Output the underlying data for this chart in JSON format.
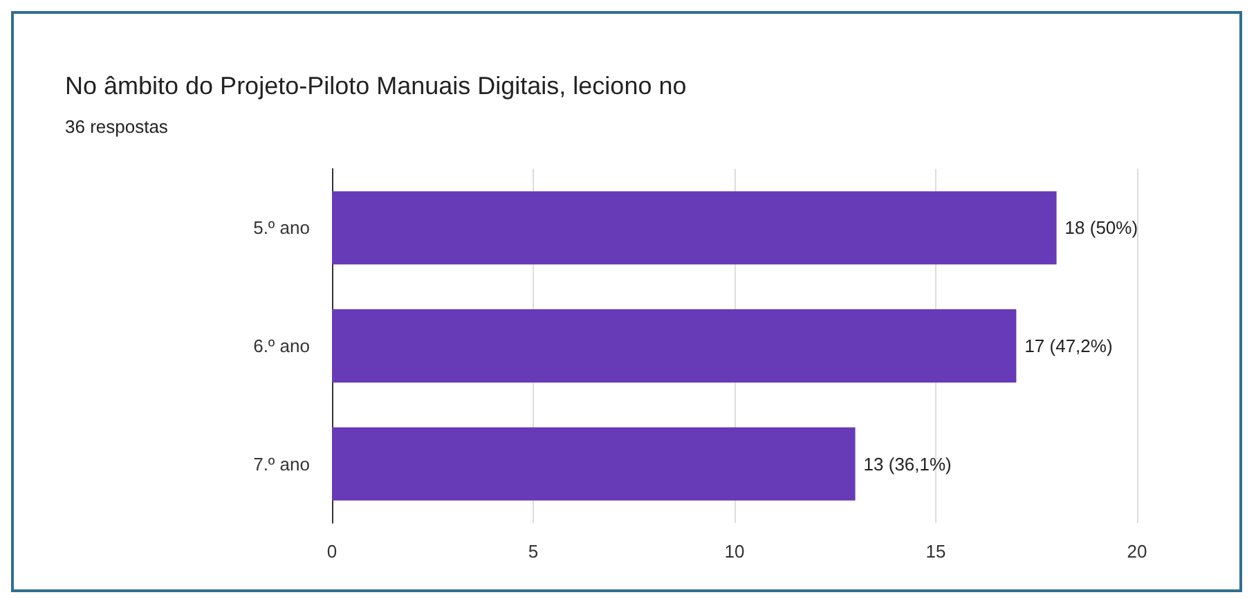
{
  "chart_data": {
    "type": "bar",
    "orientation": "horizontal",
    "title": "No âmbito do Projeto-Piloto Manuais Digitais, leciono no",
    "subtitle": "36 respostas",
    "categories": [
      "5.º ano",
      "6.º ano",
      "7.º ano"
    ],
    "values": [
      18,
      17,
      13
    ],
    "value_labels": [
      "18 (50%)",
      "17 (47,2%)",
      "13 (36,1%)"
    ],
    "color": "#673ab7",
    "xlim": [
      0,
      20
    ],
    "xticks": [
      0,
      5,
      10,
      15,
      20
    ],
    "grid": "x"
  }
}
